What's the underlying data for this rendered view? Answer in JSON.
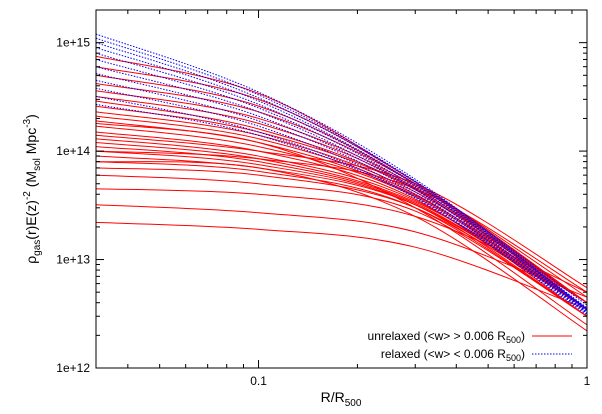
{
  "chart_data": {
    "type": "line",
    "title": "",
    "xlabel": {
      "base": "R/R",
      "sub": "500"
    },
    "ylabel": {
      "p1": "ρ",
      "sub1": "gas",
      "p2": "(r)E(z)",
      "sup1": "-2",
      "p3": " (M",
      "sub2": "sol",
      "p4": " Mpc",
      "sup2": "-3",
      "p5": ")"
    },
    "x_scale": "log",
    "y_scale": "log",
    "xlim": [
      0.032,
      1.0
    ],
    "ylim": [
      1000000000000.0,
      2000000000000000.0
    ],
    "x_ticks": [
      {
        "value": 0.1,
        "label": "0.1"
      },
      {
        "value": 1,
        "label": "1"
      }
    ],
    "y_ticks": [
      {
        "value": 1000000000000.0,
        "label": "1e+12"
      },
      {
        "value": 10000000000000.0,
        "label": "1e+13"
      },
      {
        "value": 100000000000000.0,
        "label": "1e+14"
      },
      {
        "value": 1000000000000000.0,
        "label": "1e+15"
      }
    ],
    "grid": false,
    "legend_position": "bottom-right",
    "series": [
      {
        "name": "unrelaxed (<w> > 0.006 R500)",
        "label_parts": {
          "pre": "unrelaxed (<w> > 0.006 R",
          "sub": "500",
          "post": ")"
        },
        "color": "#ff0000",
        "dash": "solid",
        "curves": [
          {
            "x": [
              0.032,
              0.1,
              0.3,
              1.0
            ],
            "y": [
              22000000000000.0,
              19000000000000.0,
              13000000000000.0,
              3500000000000.0
            ]
          },
          {
            "x": [
              0.032,
              0.1,
              0.3,
              1.0
            ],
            "y": [
              32000000000000.0,
              27000000000000.0,
              18000000000000.0,
              4500000000000.0
            ]
          },
          {
            "x": [
              0.032,
              0.1,
              0.3,
              1.0
            ],
            "y": [
              45000000000000.0,
              40000000000000.0,
              25000000000000.0,
              5000000000000.0
            ]
          },
          {
            "x": [
              0.032,
              0.1,
              0.3,
              1.0
            ],
            "y": [
              60000000000000.0,
              50000000000000.0,
              28000000000000.0,
              3000000000000.0
            ]
          },
          {
            "x": [
              0.032,
              0.1,
              0.3,
              1.0
            ],
            "y": [
              70000000000000.0,
              60000000000000.0,
              30000000000000.0,
              3500000000000.0
            ]
          },
          {
            "x": [
              0.032,
              0.1,
              0.3,
              1.0
            ],
            "y": [
              80000000000000.0,
              65000000000000.0,
              30000000000000.0,
              3000000000000.0
            ]
          },
          {
            "x": [
              0.032,
              0.1,
              0.3,
              1.0
            ],
            "y": [
              90000000000000.0,
              70000000000000.0,
              32000000000000.0,
              3500000000000.0
            ]
          },
          {
            "x": [
              0.032,
              0.1,
              0.3,
              1.0
            ],
            "y": [
              100000000000000.0,
              75000000000000.0,
              32000000000000.0,
              3000000000000.0
            ]
          },
          {
            "x": [
              0.032,
              0.1,
              0.3,
              1.0
            ],
            "y": [
              110000000000000.0,
              80000000000000.0,
              33000000000000.0,
              3500000000000.0
            ]
          },
          {
            "x": [
              0.032,
              0.1,
              0.3,
              1.0
            ],
            "y": [
              120000000000000.0,
              85000000000000.0,
              34000000000000.0,
              4000000000000.0
            ]
          },
          {
            "x": [
              0.032,
              0.1,
              0.3,
              1.0
            ],
            "y": [
              130000000000000.0,
              90000000000000.0,
              35000000000000.0,
              3500000000000.0
            ]
          },
          {
            "x": [
              0.032,
              0.1,
              0.3,
              1.0
            ],
            "y": [
              150000000000000.0,
              100000000000000.0,
              36000000000000.0,
              3000000000000.0
            ]
          },
          {
            "x": [
              0.032,
              0.1,
              0.3,
              1.0
            ],
            "y": [
              170000000000000.0,
              110000000000000.0,
              38000000000000.0,
              3500000000000.0
            ]
          },
          {
            "x": [
              0.032,
              0.1,
              0.3,
              1.0
            ],
            "y": [
              190000000000000.0,
              120000000000000.0,
              39000000000000.0,
              4000000000000.0
            ]
          },
          {
            "x": [
              0.032,
              0.1,
              0.3,
              1.0
            ],
            "y": [
              210000000000000.0,
              130000000000000.0,
              40000000000000.0,
              3500000000000.0
            ]
          },
          {
            "x": [
              0.032,
              0.1,
              0.3,
              1.0
            ],
            "y": [
              230000000000000.0,
              140000000000000.0,
              42000000000000.0,
              4000000000000.0
            ]
          },
          {
            "x": [
              0.032,
              0.1,
              0.3,
              1.0
            ],
            "y": [
              260000000000000.0,
              150000000000000.0,
              44000000000000.0,
              3500000000000.0
            ]
          },
          {
            "x": [
              0.032,
              0.1,
              0.3,
              1.0
            ],
            "y": [
              290000000000000.0,
              160000000000000.0,
              45000000000000.0,
              4000000000000.0
            ]
          },
          {
            "x": [
              0.032,
              0.1,
              0.3,
              1.0
            ],
            "y": [
              320000000000000.0,
              180000000000000.0,
              46000000000000.0,
              3500000000000.0
            ]
          },
          {
            "x": [
              0.032,
              0.1,
              0.3,
              1.0
            ],
            "y": [
              360000000000000.0,
              200000000000000.0,
              48000000000000.0,
              4000000000000.0
            ]
          },
          {
            "x": [
              0.032,
              0.1,
              0.3,
              1.0
            ],
            "y": [
              420000000000000.0,
              230000000000000.0,
              50000000000000.0,
              4000000000000.0
            ]
          },
          {
            "x": [
              0.032,
              0.1,
              0.3,
              1.0
            ],
            "y": [
              500000000000000.0,
              260000000000000.0,
              50000000000000.0,
              3500000000000.0
            ]
          },
          {
            "x": [
              0.032,
              0.1,
              0.3,
              1.0
            ],
            "y": [
              600000000000000.0,
              300000000000000.0,
              52000000000000.0,
              4000000000000.0
            ]
          },
          {
            "x": [
              0.032,
              0.1,
              0.3,
              1.0
            ],
            "y": [
              750000000000000.0,
              340000000000000.0,
              52000000000000.0,
              4500000000000.0
            ]
          },
          {
            "x": [
              0.032,
              0.1,
              0.3,
              1.0
            ],
            "y": [
              100000000000000.0,
              85000000000000.0,
              45000000000000.0,
              5000000000000.0
            ]
          },
          {
            "x": [
              0.032,
              0.1,
              0.3,
              1.0
            ],
            "y": [
              140000000000000.0,
              100000000000000.0,
              50000000000000.0,
              5500000000000.0
            ]
          },
          {
            "x": [
              0.032,
              0.1,
              0.3,
              1.0
            ],
            "y": [
              80000000000000.0,
              70000000000000.0,
              25000000000000.0,
              2200000000000.0
            ]
          },
          {
            "x": [
              0.032,
              0.1,
              0.3,
              1.0
            ],
            "y": [
              180000000000000.0,
              120000000000000.0,
              30000000000000.0,
              2500000000000.0
            ]
          }
        ]
      },
      {
        "name": "relaxed (<w> < 0.006 R500)",
        "label_parts": {
          "pre": "relaxed (<w> < 0.006 R",
          "sub": "500",
          "post": ")"
        },
        "color": "#0000ff",
        "dash": "dotted",
        "curves": [
          {
            "x": [
              0.032,
              0.1,
              0.3,
              1.0
            ],
            "y": [
              1200000000000000.0,
              350000000000000.0,
              55000000000000.0,
              3500000000000.0
            ]
          },
          {
            "x": [
              0.032,
              0.1,
              0.3,
              1.0
            ],
            "y": [
              1100000000000000.0,
              330000000000000.0,
              53000000000000.0,
              3800000000000.0
            ]
          },
          {
            "x": [
              0.032,
              0.1,
              0.3,
              1.0
            ],
            "y": [
              1000000000000000.0,
              310000000000000.0,
              52000000000000.0,
              3500000000000.0
            ]
          },
          {
            "x": [
              0.032,
              0.1,
              0.3,
              1.0
            ],
            "y": [
              900000000000000.0,
              290000000000000.0,
              50000000000000.0,
              3600000000000.0
            ]
          },
          {
            "x": [
              0.032,
              0.1,
              0.3,
              1.0
            ],
            "y": [
              800000000000000.0,
              270000000000000.0,
              49000000000000.0,
              3400000000000.0
            ]
          },
          {
            "x": [
              0.032,
              0.1,
              0.3,
              1.0
            ],
            "y": [
              700000000000000.0,
              250000000000000.0,
              47000000000000.0,
              3500000000000.0
            ]
          },
          {
            "x": [
              0.032,
              0.1,
              0.3,
              1.0
            ],
            "y": [
              600000000000000.0,
              230000000000000.0,
              45000000000000.0,
              3300000000000.0
            ]
          },
          {
            "x": [
              0.032,
              0.1,
              0.3,
              1.0
            ],
            "y": [
              520000000000000.0,
              210000000000000.0,
              44000000000000.0,
              3400000000000.0
            ]
          },
          {
            "x": [
              0.032,
              0.1,
              0.3,
              1.0
            ],
            "y": [
              450000000000000.0,
              190000000000000.0,
              42000000000000.0,
              3200000000000.0
            ]
          },
          {
            "x": [
              0.032,
              0.1,
              0.3,
              1.0
            ],
            "y": [
              380000000000000.0,
              170000000000000.0,
              40000000000000.0,
              3300000000000.0
            ]
          },
          {
            "x": [
              0.032,
              0.1,
              0.3,
              1.0
            ],
            "y": [
              320000000000000.0,
              150000000000000.0,
              38000000000000.0,
              3200000000000.0
            ]
          },
          {
            "x": [
              0.032,
              0.1,
              0.3,
              1.0
            ],
            "y": [
              270000000000000.0,
              140000000000000.0,
              37000000000000.0,
              3100000000000.0
            ]
          }
        ]
      }
    ]
  }
}
